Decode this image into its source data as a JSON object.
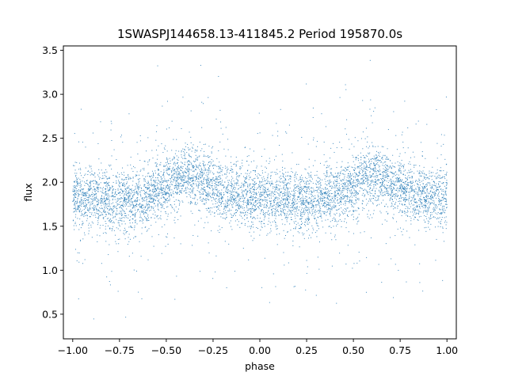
{
  "chart_data": {
    "type": "scatter",
    "title": "1SWASPJ144658.13-411845.2 Period 195870.0s",
    "xlabel": "phase",
    "ylabel": "flux",
    "xlim": [
      -1.05,
      1.05
    ],
    "ylim": [
      0.22,
      3.55
    ],
    "xticks": [
      -1.0,
      -0.75,
      -0.5,
      -0.25,
      0.0,
      0.25,
      0.5,
      0.75,
      1.0
    ],
    "xtick_labels": [
      "−1.00",
      "−0.75",
      "−0.50",
      "−0.25",
      "0.00",
      "0.25",
      "0.50",
      "0.75",
      "1.00"
    ],
    "yticks": [
      0.5,
      1.0,
      1.5,
      2.0,
      2.5,
      3.0,
      3.5
    ],
    "ytick_labels": [
      "0.5",
      "1.0",
      "1.5",
      "2.0",
      "2.5",
      "3.0",
      "3.5"
    ],
    "grid": false,
    "legend": "none",
    "marker_color": "#1f77b4",
    "series": [
      {
        "x_range": [
          -1.0,
          1.0
        ],
        "phase_profile": {
          "phase": [
            0.0,
            0.1,
            0.2,
            0.25,
            0.3,
            0.35,
            0.4,
            0.5,
            0.55,
            0.6,
            0.65,
            0.7,
            0.75,
            0.8,
            0.85,
            0.9,
            1.0
          ],
          "flux_median": [
            1.82,
            1.82,
            1.8,
            1.79,
            1.8,
            1.82,
            1.85,
            1.95,
            2.03,
            2.08,
            2.05,
            2.0,
            1.95,
            1.9,
            1.86,
            1.83,
            1.82
          ]
        },
        "flux_core_range": [
          1.25,
          2.45
        ],
        "flux_outlier_range": [
          0.35,
          3.4
        ]
      }
    ]
  }
}
